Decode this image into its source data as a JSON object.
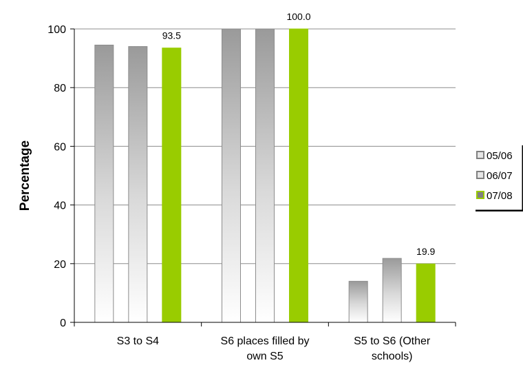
{
  "chart_data": {
    "type": "bar",
    "title": "",
    "xlabel": "",
    "ylabel": "Percentage",
    "ylim": [
      0,
      100
    ],
    "yticks": [
      "0",
      "20",
      "40",
      "60",
      "80",
      "100"
    ],
    "categories": [
      [
        "S3 to S4"
      ],
      [
        "S6 places filled by",
        "own S5"
      ],
      [
        "S5 to S6 (Other",
        "schools)"
      ]
    ],
    "series": [
      {
        "name": "05/06",
        "values": [
          94.5,
          100.0,
          14.0
        ],
        "color": "#a6a6a6"
      },
      {
        "name": "06/07",
        "values": [
          94.0,
          100.0,
          21.8
        ],
        "color": "#a6a6a6"
      },
      {
        "name": "07/08",
        "values": [
          93.5,
          100.0,
          19.9
        ],
        "color": "#99cc00"
      }
    ],
    "data_labels": [
      {
        "series": 2,
        "category": 0,
        "text": "93.5"
      },
      {
        "series": 2,
        "category": 1,
        "text": "100.0"
      },
      {
        "series": 2,
        "category": 2,
        "text": "19.9"
      }
    ],
    "grid": true,
    "legend": "right"
  }
}
